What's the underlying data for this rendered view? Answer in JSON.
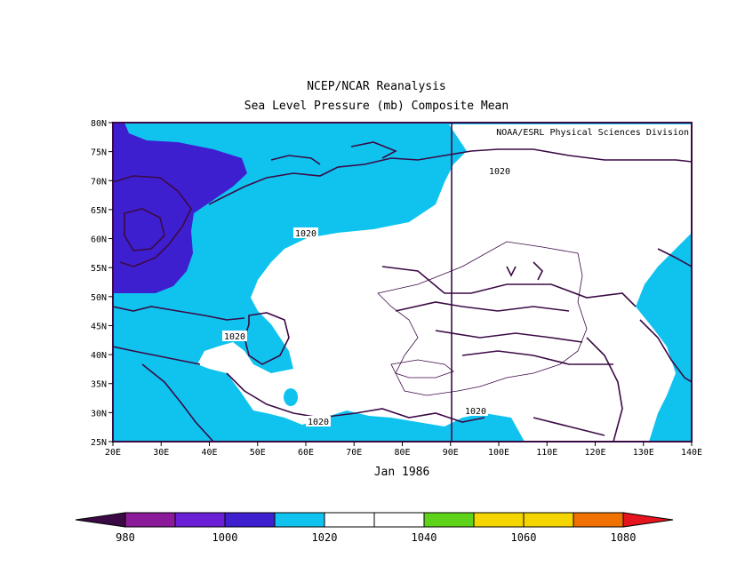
{
  "title": "NCEP/NCAR Reanalysis",
  "subtitle": "Sea Level Pressure (mb) Composite Mean",
  "credit": "NOAA/ESRL Physical Sciences Division",
  "date_label": "Jan 1986",
  "contour_label": "1020",
  "lon_labels": [
    "20E",
    "30E",
    "40E",
    "50E",
    "60E",
    "70E",
    "80E",
    "90E",
    "100E",
    "110E",
    "120E",
    "130E",
    "140E"
  ],
  "lat_labels": [
    "80N",
    "75N",
    "70N",
    "65N",
    "60N",
    "55N",
    "50N",
    "45N",
    "40N",
    "35N",
    "30N",
    "25N"
  ],
  "colorbar": {
    "colors": [
      "#3b0a45",
      "#8b1a9a",
      "#6a1fd6",
      "#3d1fd0",
      "#10c3ef",
      "#ffffff",
      "#ffffff",
      "#5fd31a",
      "#f5d500",
      "#f5d500",
      "#f07000",
      "#e6141e"
    ],
    "labels": [
      "980",
      "1000",
      "1020",
      "1040",
      "1060",
      "1080"
    ]
  },
  "field_colors": {
    "land_outline": "#3b0a45",
    "low": "#3d1fd0",
    "mid": "#10c3ef",
    "high": "#ffffff"
  }
}
